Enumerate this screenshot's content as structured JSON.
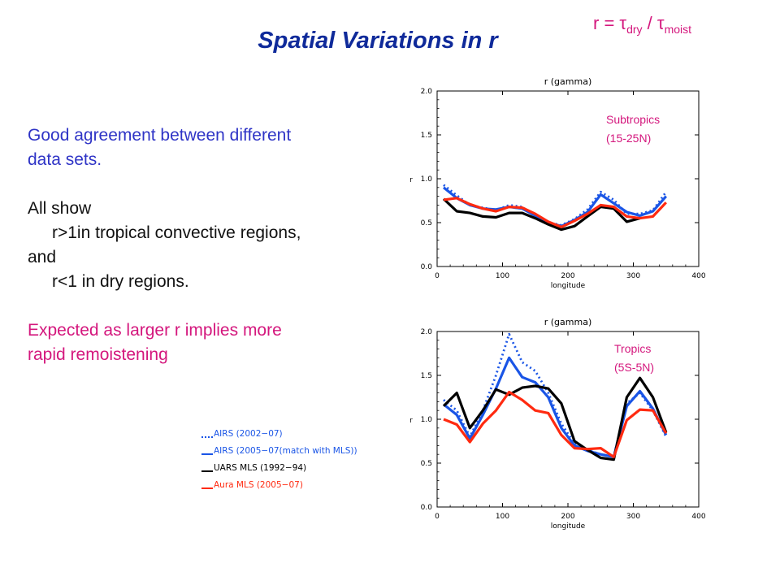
{
  "slide": {
    "title": "Spatial Variations in r",
    "formula": {
      "lhs": "r = ",
      "tau": "τ",
      "num_sub": "dry",
      "slash": " / ",
      "den_sub": "moist"
    },
    "text": {
      "p1_line1": "Good agreement between different",
      "p1_line2": "data sets.",
      "p2_line1": "All show",
      "p2_line2": "r>1in tropical convective regions,",
      "p2_line3": "and",
      "p2_line4": "r<1 in dry regions.",
      "p3_line1": "Expected as larger r implies more",
      "p3_line2": "rapid remoistening"
    },
    "colors": {
      "title": "#0f2a9a",
      "accent": "#d4177d",
      "body_blue": "#2f34c6"
    }
  },
  "legend": [
    {
      "label": "AIRS (2002−07)",
      "color": "#1a55e6",
      "style": "dotted"
    },
    {
      "label": "AIRS (2005−07(match with MLS))",
      "color": "#1a55e6",
      "style": "solid"
    },
    {
      "label": "UARS MLS (1992−94)",
      "color": "#000000",
      "style": "solid"
    },
    {
      "label": "Aura MLS (2005−07)",
      "color": "#ff2a10",
      "style": "solid"
    }
  ],
  "chart_data": [
    {
      "type": "line",
      "title": "r (gamma)",
      "xlabel": "longitude",
      "ylabel": "r",
      "region_label": [
        "Subtropics",
        "(15-25N)"
      ],
      "xlim": [
        0,
        400
      ],
      "ylim": [
        0.0,
        2.0
      ],
      "xticks": [
        0,
        100,
        200,
        300,
        400
      ],
      "yticks": [
        0.0,
        0.5,
        1.0,
        1.5,
        2.0
      ],
      "x": [
        10,
        30,
        50,
        70,
        90,
        110,
        130,
        150,
        170,
        190,
        210,
        230,
        250,
        270,
        290,
        310,
        330,
        350
      ],
      "series": [
        {
          "name": "AIRS (2002−07)",
          "color": "#1a55e6",
          "dash": "dotted",
          "values": [
            0.93,
            0.81,
            0.7,
            0.67,
            0.64,
            0.7,
            0.68,
            0.57,
            0.5,
            0.47,
            0.54,
            0.65,
            0.85,
            0.76,
            0.6,
            0.6,
            0.64,
            0.85
          ]
        },
        {
          "name": "AIRS (2005−07(match with MLS))",
          "color": "#1a55e6",
          "dash": "solid",
          "values": [
            0.9,
            0.78,
            0.7,
            0.66,
            0.65,
            0.68,
            0.66,
            0.58,
            0.5,
            0.46,
            0.53,
            0.62,
            0.82,
            0.72,
            0.62,
            0.58,
            0.63,
            0.8
          ]
        },
        {
          "name": "UARS MLS (1992−94)",
          "color": "#000000",
          "dash": "solid",
          "values": [
            0.77,
            0.63,
            0.61,
            0.57,
            0.56,
            0.61,
            0.61,
            0.55,
            0.48,
            0.42,
            0.46,
            0.57,
            0.68,
            0.66,
            0.51,
            0.55,
            null,
            null
          ]
        },
        {
          "name": "Aura MLS (2005−07)",
          "color": "#ff2a10",
          "dash": "solid",
          "values": [
            0.76,
            0.78,
            0.71,
            0.66,
            0.63,
            0.68,
            0.67,
            0.6,
            0.51,
            0.45,
            0.52,
            0.6,
            0.7,
            0.68,
            0.57,
            0.55,
            0.57,
            0.73
          ]
        }
      ]
    },
    {
      "type": "line",
      "title": "r (gamma)",
      "xlabel": "longitude",
      "ylabel": "r",
      "region_label": [
        "Tropics",
        "(5S-5N)"
      ],
      "xlim": [
        0,
        400
      ],
      "ylim": [
        0.0,
        2.0
      ],
      "xticks": [
        0,
        100,
        200,
        300,
        400
      ],
      "yticks": [
        0.0,
        0.5,
        1.0,
        1.5,
        2.0
      ],
      "x": [
        10,
        30,
        50,
        70,
        90,
        110,
        130,
        150,
        170,
        190,
        210,
        230,
        250,
        270,
        290,
        310,
        330,
        350
      ],
      "series": [
        {
          "name": "AIRS (2002−07)",
          "color": "#1a55e6",
          "dash": "dotted",
          "values": [
            1.22,
            1.1,
            0.8,
            1.1,
            1.5,
            1.97,
            1.65,
            1.55,
            1.3,
            0.95,
            0.72,
            0.65,
            0.6,
            0.58,
            1.18,
            1.3,
            1.1,
            0.8
          ]
        },
        {
          "name": "AIRS (2005−07(match with MLS))",
          "color": "#1a55e6",
          "dash": "solid",
          "values": [
            1.17,
            1.05,
            0.78,
            1.05,
            1.35,
            1.7,
            1.48,
            1.42,
            1.25,
            0.9,
            0.7,
            0.64,
            0.6,
            0.57,
            1.15,
            1.32,
            1.12,
            0.82
          ]
        },
        {
          "name": "UARS MLS (1992−94)",
          "color": "#000000",
          "dash": "solid",
          "values": [
            1.15,
            1.3,
            0.9,
            1.1,
            1.34,
            1.28,
            1.36,
            1.38,
            1.35,
            1.18,
            0.75,
            0.65,
            0.56,
            0.54,
            1.25,
            1.47,
            1.25,
            0.85
          ]
        },
        {
          "name": "Aura MLS (2005−07)",
          "color": "#ff2a10",
          "dash": "solid",
          "values": [
            1.0,
            0.94,
            0.74,
            0.95,
            1.1,
            1.31,
            1.22,
            1.1,
            1.07,
            0.82,
            0.67,
            0.66,
            0.67,
            0.57,
            0.99,
            1.11,
            1.1,
            0.84
          ]
        }
      ]
    }
  ]
}
